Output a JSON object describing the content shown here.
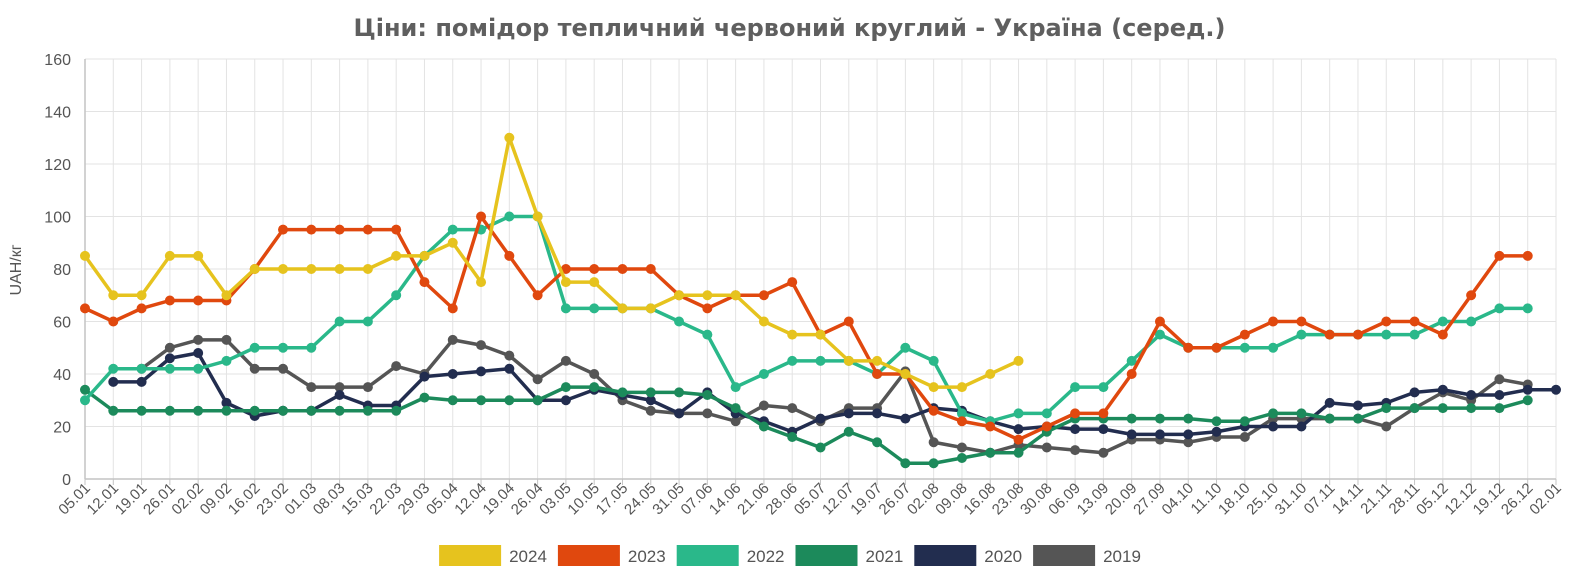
{
  "chart_data": {
    "type": "line",
    "title": "Ціни: помідор тепличний червоний круглий - Україна (серед.)",
    "ylabel": "UAH/кг",
    "xlabel": "",
    "ylim": [
      0,
      160
    ],
    "yticks": [
      0,
      20,
      40,
      60,
      80,
      100,
      120,
      140,
      160
    ],
    "grid": true,
    "legend_position": "bottom",
    "categories": [
      "05.01",
      "12.01",
      "19.01",
      "26.01",
      "02.02",
      "09.02",
      "16.02",
      "23.02",
      "01.03",
      "08.03",
      "15.03",
      "22.03",
      "29.03",
      "05.04",
      "12.04",
      "19.04",
      "26.04",
      "03.05",
      "10.05",
      "17.05",
      "24.05",
      "31.05",
      "07.06",
      "14.06",
      "21.06",
      "28.06",
      "05.07",
      "12.07",
      "19.07",
      "26.07",
      "02.08",
      "09.08",
      "16.08",
      "23.08",
      "30.08",
      "06.09",
      "13.09",
      "20.09",
      "27.09",
      "04.10",
      "11.10",
      "18.10",
      "25.10",
      "31.10",
      "07.11",
      "14.11",
      "21.11",
      "28.11",
      "05.12",
      "12.12",
      "19.12",
      "26.12",
      "02.01"
    ],
    "series": [
      {
        "name": "2019",
        "color": "#555555",
        "values": [
          null,
          null,
          42,
          50,
          53,
          53,
          42,
          42,
          35,
          35,
          35,
          43,
          40,
          53,
          51,
          47,
          38,
          45,
          40,
          30,
          26,
          25,
          25,
          22,
          28,
          27,
          22,
          27,
          27,
          41,
          14,
          12,
          10,
          13,
          12,
          11,
          10,
          15,
          15,
          14,
          16,
          16,
          23,
          23,
          23,
          23,
          20,
          27,
          33,
          30,
          38,
          36,
          null
        ]
      },
      {
        "name": "2020",
        "color": "#222d4f",
        "values": [
          null,
          37,
          37,
          46,
          48,
          29,
          24,
          26,
          26,
          32,
          28,
          28,
          39,
          40,
          41,
          42,
          30,
          30,
          34,
          32,
          30,
          25,
          33,
          25,
          22,
          18,
          23,
          25,
          25,
          23,
          27,
          26,
          22,
          19,
          20,
          19,
          19,
          17,
          17,
          17,
          18,
          20,
          20,
          20,
          29,
          28,
          29,
          33,
          34,
          32,
          32,
          34,
          34
        ]
      },
      {
        "name": "2021",
        "color": "#1c8a5b",
        "values": [
          34,
          26,
          26,
          26,
          26,
          26,
          26,
          26,
          26,
          26,
          26,
          26,
          31,
          30,
          30,
          30,
          30,
          35,
          35,
          33,
          33,
          33,
          32,
          27,
          20,
          16,
          12,
          18,
          14,
          6,
          6,
          8,
          10,
          10,
          18,
          23,
          23,
          23,
          23,
          23,
          22,
          22,
          25,
          25,
          23,
          23,
          27,
          27,
          27,
          27,
          27,
          30,
          null
        ]
      },
      {
        "name": "2022",
        "color": "#2ab88a",
        "values": [
          30,
          42,
          42,
          42,
          42,
          45,
          50,
          50,
          50,
          60,
          60,
          70,
          85,
          95,
          95,
          100,
          100,
          65,
          65,
          65,
          65,
          60,
          55,
          35,
          40,
          45,
          45,
          45,
          40,
          50,
          45,
          25,
          22,
          25,
          25,
          35,
          35,
          45,
          55,
          50,
          50,
          50,
          50,
          55,
          55,
          55,
          55,
          55,
          60,
          60,
          65,
          65,
          null
        ]
      },
      {
        "name": "2023",
        "color": "#e0480e",
        "values": [
          65,
          60,
          65,
          68,
          68,
          68,
          80,
          95,
          95,
          95,
          95,
          95,
          75,
          65,
          100,
          85,
          70,
          80,
          80,
          80,
          80,
          70,
          65,
          70,
          70,
          75,
          55,
          60,
          40,
          40,
          26,
          22,
          20,
          15,
          20,
          25,
          25,
          40,
          60,
          50,
          50,
          55,
          60,
          60,
          55,
          55,
          60,
          60,
          55,
          70,
          85,
          85,
          null
        ]
      },
      {
        "name": "2024",
        "color": "#e6c31e",
        "values": [
          85,
          70,
          70,
          85,
          85,
          70,
          80,
          80,
          80,
          80,
          80,
          85,
          85,
          90,
          75,
          130,
          100,
          75,
          75,
          65,
          65,
          70,
          70,
          70,
          60,
          55,
          55,
          45,
          45,
          40,
          35,
          35,
          40,
          45,
          null,
          null,
          null,
          null,
          null,
          null,
          null,
          null,
          null,
          null,
          null,
          null,
          null,
          null,
          null,
          null,
          null,
          null,
          null
        ]
      }
    ],
    "legend_order": [
      "2024",
      "2023",
      "2022",
      "2021",
      "2020",
      "2019"
    ]
  }
}
